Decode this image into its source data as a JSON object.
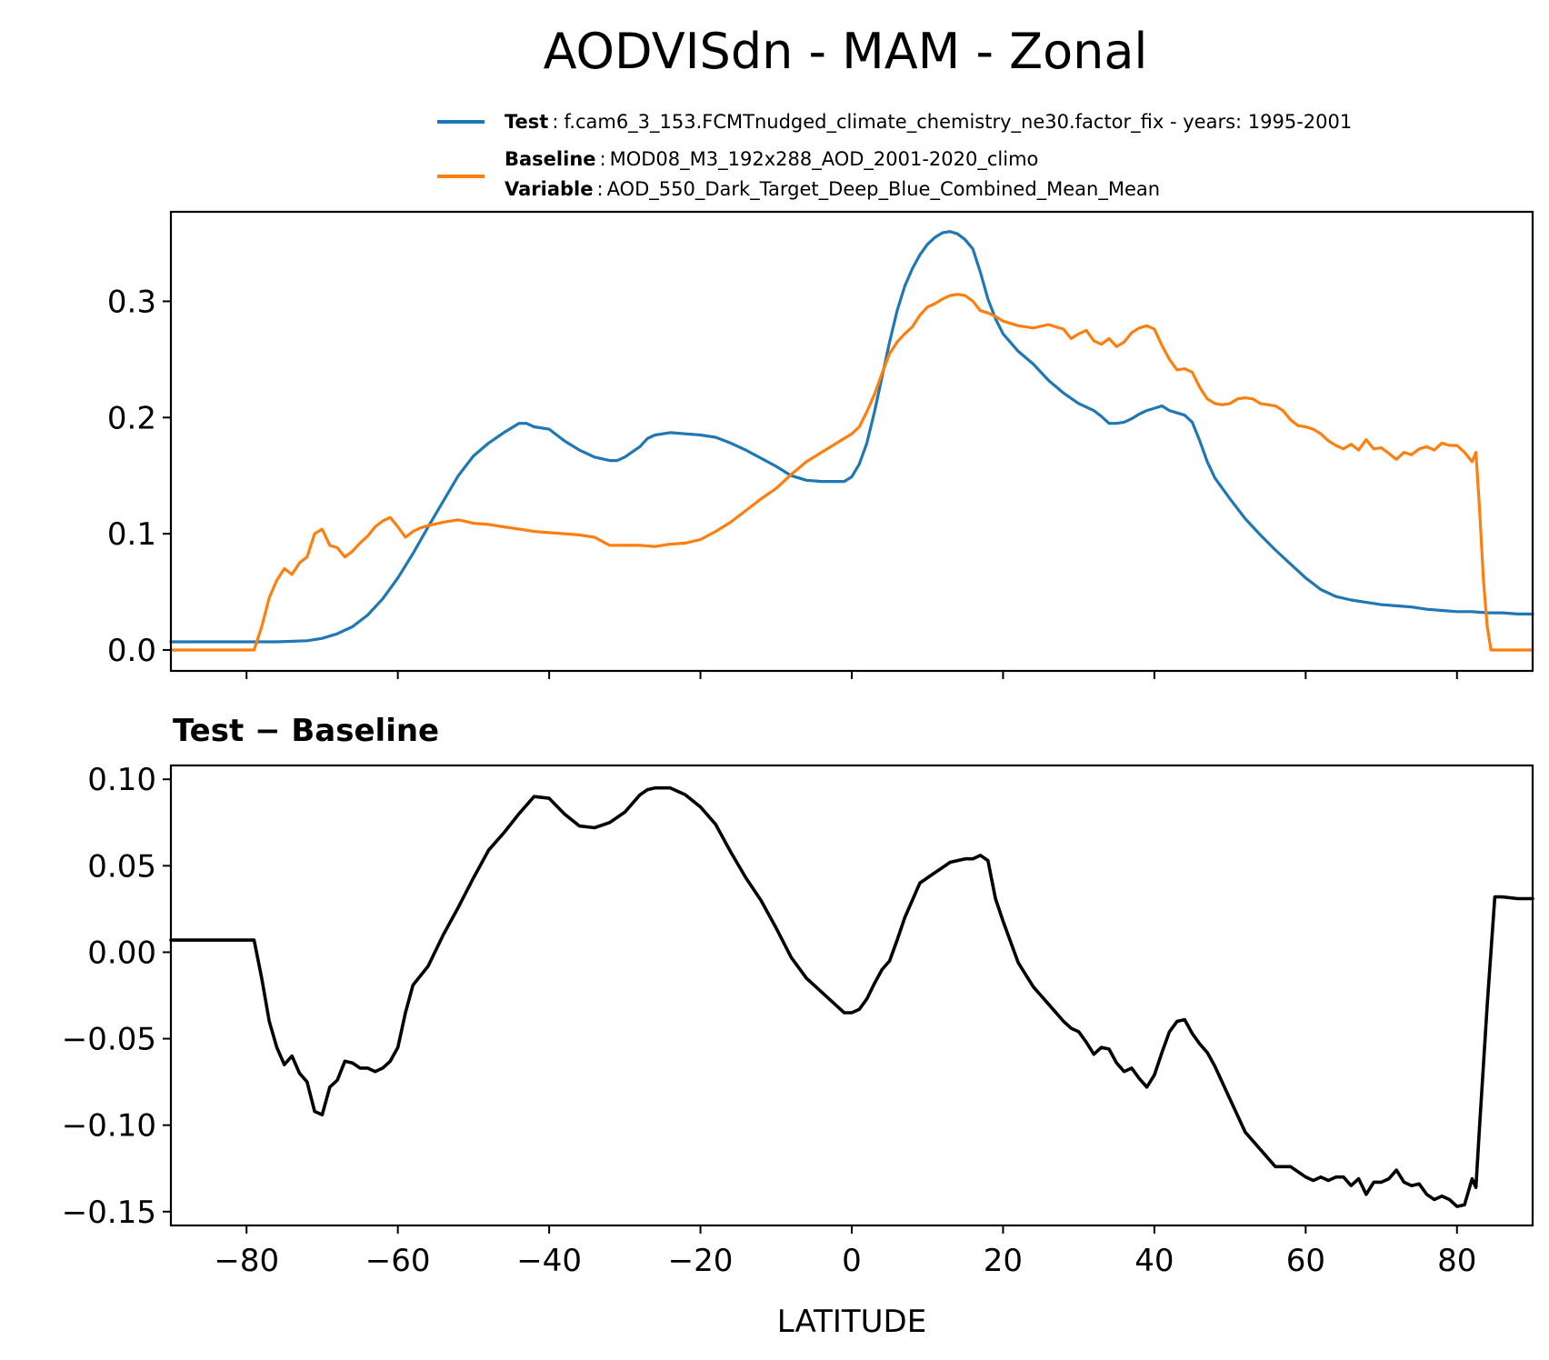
{
  "chart_data": [
    {
      "type": "line",
      "title": "AODVISdn - MAM - Zonal",
      "xlabel": "",
      "ylabel": "",
      "xlim": [
        -90,
        90
      ],
      "ylim": [
        -0.018,
        0.377
      ],
      "yticks": [
        0.0,
        0.1,
        0.2,
        0.3
      ],
      "ytick_labels": [
        "0.0",
        "0.1",
        "0.2",
        "0.3"
      ],
      "xticks": [
        -80,
        -60,
        -40,
        -20,
        0,
        20,
        40,
        60,
        80
      ],
      "legend": {
        "location": "top-right",
        "entries": [
          {
            "key": "Test",
            "text": "f.cam6_3_153.FCMTnudged_climate_chemistry_ne30.factor_fix - years: 1995-2001"
          },
          {
            "key": "Baseline",
            "text": "MOD08_M3_192x288_AOD_2001-2020_climo",
            "key2": "Variable",
            "text2": "AOD_550_Dark_Target_Deep_Blue_Combined_Mean_Mean"
          }
        ]
      },
      "series": [
        {
          "name": "Test",
          "color": "#1f77b4",
          "x": [
            -90,
            -80,
            -76,
            -72,
            -70,
            -68,
            -66,
            -64,
            -62,
            -60,
            -58,
            -56,
            -54,
            -52,
            -50,
            -48,
            -46,
            -44,
            -43,
            -42,
            -40,
            -38,
            -36,
            -34,
            -32,
            -31,
            -30,
            -28,
            -27,
            -26,
            -24,
            -22,
            -20,
            -18,
            -16,
            -14,
            -12,
            -10,
            -8,
            -6,
            -4,
            -2,
            -1,
            0,
            1,
            2,
            3,
            4,
            5,
            6,
            7,
            8,
            9,
            10,
            11,
            12,
            13,
            14,
            15,
            16,
            17,
            18,
            19,
            20,
            22,
            24,
            26,
            28,
            30,
            32,
            33,
            34,
            35,
            36,
            37,
            38,
            39,
            40,
            41,
            42,
            43,
            44,
            45,
            46,
            47,
            48,
            50,
            52,
            54,
            56,
            58,
            60,
            62,
            64,
            66,
            68,
            70,
            72,
            74,
            76,
            78,
            80,
            82,
            84,
            86,
            88,
            90
          ],
          "y": [
            0.007,
            0.007,
            0.007,
            0.008,
            0.01,
            0.014,
            0.02,
            0.03,
            0.044,
            0.062,
            0.083,
            0.106,
            0.128,
            0.15,
            0.167,
            0.178,
            0.187,
            0.195,
            0.195,
            0.192,
            0.19,
            0.18,
            0.172,
            0.166,
            0.163,
            0.163,
            0.166,
            0.175,
            0.182,
            0.185,
            0.187,
            0.186,
            0.185,
            0.183,
            0.178,
            0.172,
            0.165,
            0.158,
            0.15,
            0.146,
            0.145,
            0.145,
            0.145,
            0.149,
            0.16,
            0.178,
            0.205,
            0.235,
            0.265,
            0.292,
            0.313,
            0.328,
            0.34,
            0.349,
            0.355,
            0.359,
            0.36,
            0.358,
            0.353,
            0.345,
            0.325,
            0.302,
            0.285,
            0.272,
            0.257,
            0.246,
            0.232,
            0.221,
            0.212,
            0.206,
            0.201,
            0.195,
            0.195,
            0.196,
            0.199,
            0.203,
            0.206,
            0.208,
            0.21,
            0.206,
            0.204,
            0.202,
            0.196,
            0.18,
            0.162,
            0.148,
            0.13,
            0.113,
            0.099,
            0.086,
            0.074,
            0.062,
            0.052,
            0.046,
            0.043,
            0.041,
            0.039,
            0.038,
            0.037,
            0.035,
            0.034,
            0.033,
            0.033,
            0.032,
            0.032,
            0.031,
            0.031
          ]
        },
        {
          "name": "Baseline",
          "color": "#ff7f0e",
          "x": [
            -90,
            -79,
            -78,
            -77,
            -76,
            -75,
            -74,
            -73,
            -72,
            -71,
            -70,
            -69,
            -68,
            -67,
            -66,
            -65,
            -64,
            -63,
            -62,
            -61,
            -60,
            -59,
            -58,
            -57,
            -56,
            -54,
            -52,
            -50,
            -48,
            -46,
            -44,
            -42,
            -40,
            -38,
            -36,
            -34,
            -32,
            -30,
            -28,
            -26,
            -24,
            -22,
            -20,
            -18,
            -16,
            -14,
            -12,
            -10,
            -8,
            -6,
            -4,
            -2,
            -1,
            0,
            1,
            2,
            3,
            4,
            5,
            6,
            7,
            8,
            9,
            10,
            11,
            12,
            13,
            14,
            15,
            16,
            17,
            18,
            19,
            20,
            22,
            24,
            26,
            28,
            29,
            30,
            31,
            32,
            33,
            34,
            35,
            36,
            37,
            38,
            39,
            40,
            41,
            42,
            43,
            44,
            45,
            46,
            47,
            48,
            49,
            50,
            51,
            52,
            53,
            54,
            55,
            56,
            57,
            58,
            59,
            60,
            61,
            62,
            63,
            64,
            65,
            66,
            67,
            68,
            69,
            70,
            71,
            72,
            73,
            74,
            75,
            76,
            77,
            78,
            79,
            80,
            81,
            82,
            82.5,
            83,
            83.5,
            84,
            84.5,
            90
          ],
          "y": [
            0.0,
            0.0,
            0.02,
            0.045,
            0.06,
            0.07,
            0.065,
            0.075,
            0.08,
            0.1,
            0.104,
            0.09,
            0.088,
            0.08,
            0.085,
            0.092,
            0.098,
            0.106,
            0.111,
            0.114,
            0.106,
            0.097,
            0.102,
            0.105,
            0.107,
            0.11,
            0.112,
            0.109,
            0.108,
            0.106,
            0.104,
            0.102,
            0.101,
            0.1,
            0.099,
            0.097,
            0.09,
            0.09,
            0.09,
            0.089,
            0.091,
            0.092,
            0.095,
            0.102,
            0.11,
            0.12,
            0.13,
            0.139,
            0.151,
            0.162,
            0.17,
            0.178,
            0.182,
            0.186,
            0.192,
            0.205,
            0.22,
            0.238,
            0.255,
            0.265,
            0.272,
            0.278,
            0.288,
            0.295,
            0.298,
            0.302,
            0.305,
            0.306,
            0.305,
            0.3,
            0.292,
            0.29,
            0.287,
            0.283,
            0.279,
            0.277,
            0.28,
            0.276,
            0.268,
            0.272,
            0.275,
            0.266,
            0.263,
            0.268,
            0.261,
            0.265,
            0.273,
            0.277,
            0.279,
            0.276,
            0.262,
            0.25,
            0.241,
            0.242,
            0.239,
            0.226,
            0.216,
            0.212,
            0.211,
            0.212,
            0.216,
            0.217,
            0.216,
            0.212,
            0.211,
            0.21,
            0.206,
            0.198,
            0.193,
            0.192,
            0.19,
            0.186,
            0.18,
            0.176,
            0.173,
            0.177,
            0.172,
            0.181,
            0.173,
            0.174,
            0.169,
            0.164,
            0.17,
            0.168,
            0.173,
            0.175,
            0.172,
            0.178,
            0.176,
            0.176,
            0.17,
            0.162,
            0.17,
            0.12,
            0.06,
            0.02,
            0.0,
            0.0
          ]
        }
      ]
    },
    {
      "type": "line",
      "title": "Test − Baseline",
      "xlabel": "LATITUDE",
      "ylabel": "",
      "xlim": [
        -90,
        90
      ],
      "ylim": [
        -0.158,
        0.108
      ],
      "yticks": [
        -0.15,
        -0.1,
        -0.05,
        0.0,
        0.05,
        0.1
      ],
      "ytick_labels": [
        "−0.15",
        "−0.10",
        "−0.05",
        "0.00",
        "0.05",
        "0.10"
      ],
      "xticks": [
        -80,
        -60,
        -40,
        -20,
        0,
        20,
        40,
        60,
        80
      ],
      "xtick_labels": [
        "−80",
        "−60",
        "−40",
        "−20",
        "0",
        "20",
        "40",
        "60",
        "80"
      ],
      "series": [
        {
          "name": "Test - Baseline",
          "color": "#000000",
          "x": [
            -90,
            -79,
            -78,
            -77,
            -76,
            -75,
            -74,
            -73,
            -72,
            -71,
            -70,
            -69,
            -68,
            -67,
            -66,
            -65,
            -64,
            -63,
            -62,
            -61,
            -60,
            -59,
            -58,
            -56,
            -54,
            -52,
            -50,
            -48,
            -46,
            -44,
            -43,
            -42,
            -40,
            -38,
            -36,
            -34,
            -32,
            -30,
            -28,
            -27,
            -26,
            -24,
            -22,
            -20,
            -18,
            -16,
            -14,
            -12,
            -10,
            -8,
            -6,
            -4,
            -2,
            -1,
            0,
            1,
            2,
            3,
            4,
            5,
            6,
            7,
            8,
            9,
            10,
            11,
            12,
            13,
            14,
            15,
            16,
            17,
            18,
            19,
            20,
            22,
            24,
            26,
            28,
            29,
            30,
            31,
            32,
            33,
            34,
            35,
            36,
            37,
            38,
            39,
            40,
            41,
            42,
            43,
            44,
            45,
            46,
            47,
            48,
            50,
            52,
            54,
            56,
            58,
            60,
            61,
            62,
            63,
            64,
            65,
            66,
            67,
            68,
            69,
            70,
            71,
            72,
            73,
            74,
            75,
            76,
            77,
            78,
            79,
            80,
            81,
            82,
            82.5,
            83,
            84,
            85,
            86,
            88,
            90
          ],
          "y": [
            0.007,
            0.007,
            -0.015,
            -0.04,
            -0.055,
            -0.065,
            -0.06,
            -0.07,
            -0.075,
            -0.092,
            -0.094,
            -0.078,
            -0.074,
            -0.063,
            -0.064,
            -0.067,
            -0.067,
            -0.069,
            -0.067,
            -0.063,
            -0.055,
            -0.035,
            -0.019,
            -0.008,
            0.01,
            0.026,
            0.043,
            0.059,
            0.069,
            0.08,
            0.085,
            0.09,
            0.089,
            0.08,
            0.073,
            0.072,
            0.075,
            0.081,
            0.091,
            0.094,
            0.095,
            0.095,
            0.091,
            0.084,
            0.074,
            0.058,
            0.043,
            0.03,
            0.014,
            -0.003,
            -0.015,
            -0.023,
            -0.031,
            -0.035,
            -0.035,
            -0.033,
            -0.027,
            -0.018,
            -0.01,
            -0.005,
            0.007,
            0.02,
            0.03,
            0.04,
            0.043,
            0.046,
            0.049,
            0.052,
            0.053,
            0.054,
            0.054,
            0.056,
            0.053,
            0.031,
            0.018,
            -0.006,
            -0.02,
            -0.03,
            -0.04,
            -0.044,
            -0.046,
            -0.052,
            -0.059,
            -0.055,
            -0.056,
            -0.064,
            -0.069,
            -0.067,
            -0.073,
            -0.078,
            -0.071,
            -0.058,
            -0.046,
            -0.04,
            -0.039,
            -0.047,
            -0.053,
            -0.058,
            -0.066,
            -0.085,
            -0.104,
            -0.114,
            -0.124,
            -0.124,
            -0.13,
            -0.132,
            -0.13,
            -0.132,
            -0.13,
            -0.13,
            -0.135,
            -0.131,
            -0.14,
            -0.133,
            -0.133,
            -0.131,
            -0.126,
            -0.133,
            -0.135,
            -0.134,
            -0.14,
            -0.143,
            -0.141,
            -0.143,
            -0.147,
            -0.146,
            -0.131,
            -0.136,
            -0.1,
            -0.03,
            0.032,
            0.032,
            0.031,
            0.031
          ]
        }
      ]
    }
  ]
}
